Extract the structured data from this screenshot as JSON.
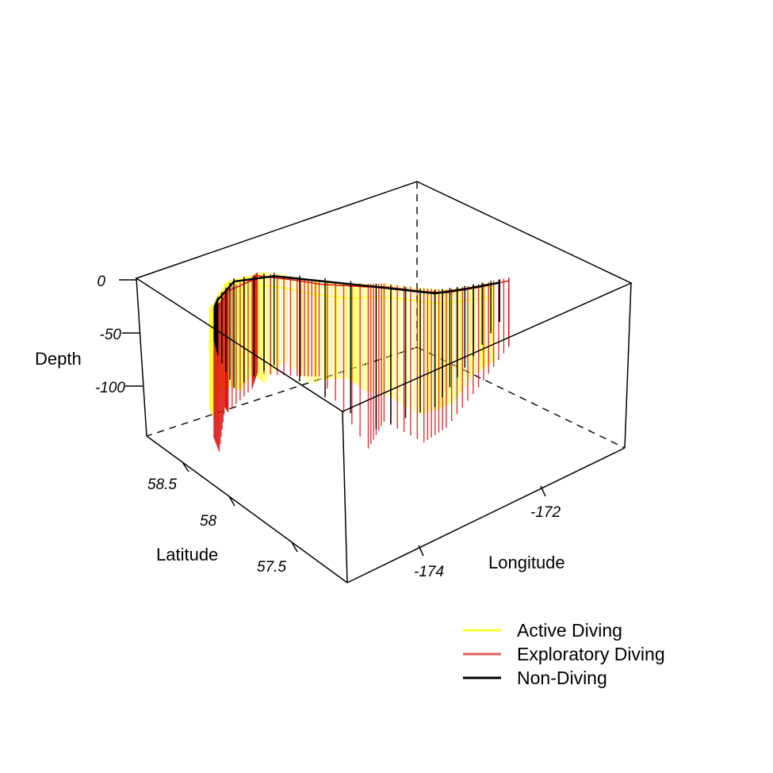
{
  "chart_data": {
    "type": "line",
    "title": "",
    "axes": {
      "x": {
        "label": "Longitude",
        "ticks": [
          -174,
          -172
        ]
      },
      "y": {
        "label": "Latitude",
        "ticks": [
          58.5,
          58.0,
          57.5
        ]
      },
      "z": {
        "label": "Depth",
        "ticks": [
          0,
          -50,
          -100
        ],
        "range": [
          -130,
          0
        ]
      }
    },
    "colors": {
      "active": "#ffff33",
      "exploratory": "#dd1111",
      "legend_exploratory": "#e06060",
      "nondiving": "#000000",
      "box": "#000000"
    },
    "legend": {
      "placement": "bottom-right",
      "entries": [
        {
          "label": "Active Diving",
          "color": "#ffff33"
        },
        {
          "label": "Exploratory Diving",
          "color": "#e06060"
        },
        {
          "label": "Non-Diving",
          "color": "#000000"
        }
      ]
    },
    "series": [
      {
        "name": "Active Diving",
        "behavior": "active",
        "color": "#ffff33",
        "dives": [
          {
            "lon": -175.55,
            "lat": 58.7,
            "depth": -100
          },
          {
            "lon": -175.4,
            "lat": 58.72,
            "depth": -115
          },
          {
            "lon": -175.2,
            "lat": 58.78,
            "depth": -108
          },
          {
            "lon": -175.0,
            "lat": 58.82,
            "depth": -95
          },
          {
            "lon": -174.9,
            "lat": 58.85,
            "depth": -118
          },
          {
            "lon": -174.8,
            "lat": 58.86,
            "depth": -104
          },
          {
            "lon": -174.6,
            "lat": 58.84,
            "depth": -112
          },
          {
            "lon": -174.4,
            "lat": 58.82,
            "depth": -98
          },
          {
            "lon": -174.2,
            "lat": 58.8,
            "depth": -110
          },
          {
            "lon": -174.0,
            "lat": 58.7,
            "depth": -86
          },
          {
            "lon": -173.8,
            "lat": 58.55,
            "depth": -102
          },
          {
            "lon": -173.6,
            "lat": 58.45,
            "depth": -96
          },
          {
            "lon": -173.4,
            "lat": 58.35,
            "depth": -94
          },
          {
            "lon": -173.2,
            "lat": 58.3,
            "depth": -106
          },
          {
            "lon": -172.9,
            "lat": 58.2,
            "depth": -110
          },
          {
            "lon": -172.6,
            "lat": 58.05,
            "depth": -125
          },
          {
            "lon": -172.4,
            "lat": 57.95,
            "depth": -118
          },
          {
            "lon": -172.2,
            "lat": 57.9,
            "depth": -112
          },
          {
            "lon": -171.9,
            "lat": 57.85,
            "depth": -90
          },
          {
            "lon": -171.6,
            "lat": 57.8,
            "depth": -80
          }
        ]
      },
      {
        "name": "Exploratory Diving",
        "behavior": "exploratory",
        "color": "#dd1111",
        "dives": [
          {
            "lon": -175.5,
            "lat": 58.68,
            "depth": -128
          },
          {
            "lon": -175.35,
            "lat": 58.7,
            "depth": -145
          },
          {
            "lon": -175.1,
            "lat": 58.76,
            "depth": -112
          },
          {
            "lon": -174.95,
            "lat": 58.8,
            "depth": -122
          },
          {
            "lon": -174.45,
            "lat": 58.8,
            "depth": -110
          },
          {
            "lon": -174.3,
            "lat": 58.82,
            "depth": -100
          },
          {
            "lon": -173.9,
            "lat": 58.62,
            "depth": -98
          },
          {
            "lon": -173.7,
            "lat": 58.5,
            "depth": -95
          },
          {
            "lon": -173.15,
            "lat": 58.28,
            "depth": -160
          },
          {
            "lon": -172.95,
            "lat": 58.22,
            "depth": -135
          },
          {
            "lon": -172.55,
            "lat": 58.02,
            "depth": -150
          },
          {
            "lon": -172.3,
            "lat": 57.92,
            "depth": -135
          },
          {
            "lon": -171.8,
            "lat": 57.84,
            "depth": -102
          },
          {
            "lon": -171.3,
            "lat": 57.78,
            "depth": -70
          }
        ]
      },
      {
        "name": "Non-Diving",
        "behavior": "nondiving",
        "color": "#000000",
        "dives": [
          {
            "lon": -175.45,
            "lat": 58.7,
            "depth": -40
          },
          {
            "lon": -175.25,
            "lat": 58.76,
            "depth": -60
          },
          {
            "lon": -174.7,
            "lat": 58.86,
            "depth": -108
          },
          {
            "lon": -174.1,
            "lat": 58.75,
            "depth": -92
          },
          {
            "lon": -173.05,
            "lat": 58.25,
            "depth": -142
          },
          {
            "lon": -172.45,
            "lat": 57.96,
            "depth": -115
          },
          {
            "lon": -172.0,
            "lat": 57.88,
            "depth": -82
          },
          {
            "lon": -171.45,
            "lat": 57.8,
            "depth": -45
          }
        ]
      }
    ]
  }
}
